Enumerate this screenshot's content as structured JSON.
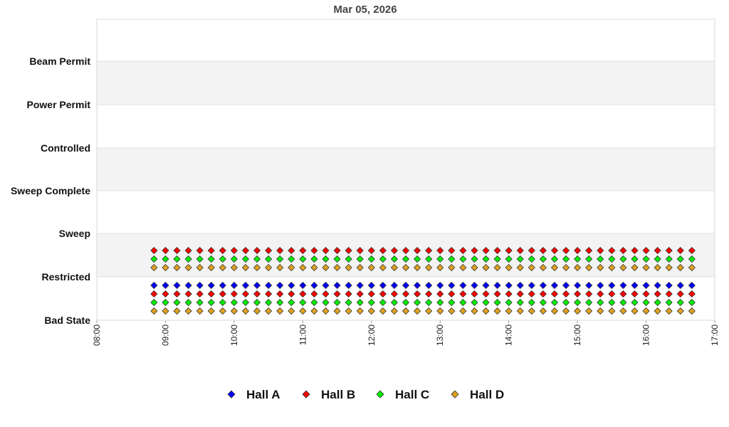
{
  "chart_data": {
    "type": "scatter",
    "title": "Mar 05, 2026",
    "xlabel": "",
    "ylabel": "",
    "x_ticks": [
      "08:00",
      "09:00",
      "10:00",
      "11:00",
      "12:00",
      "13:00",
      "14:00",
      "15:00",
      "16:00",
      "17:00"
    ],
    "xlim": [
      "08:00",
      "17:00"
    ],
    "y_categories": [
      "Bad State",
      "Restricted",
      "Sweep",
      "Sweep Complete",
      "Controlled",
      "Power Permit",
      "Beam Permit"
    ],
    "grid": "alternating horizontal bands",
    "legend_position": "bottom",
    "sample_start": "08:50",
    "sample_end": "16:40",
    "sample_interval_minutes": 10,
    "series": [
      {
        "name": "Hall A",
        "color": "#0000ff",
        "state": "Restricted"
      },
      {
        "name": "Hall B",
        "color": "#ff0000",
        "state": "Restricted"
      },
      {
        "name": "Hall C",
        "color": "#00ee00",
        "state": "Restricted"
      },
      {
        "name": "Hall D",
        "color": "#e0a020",
        "state": "Restricted"
      },
      {
        "name": "Hall B",
        "color": "#ff0000",
        "state": "Sweep"
      },
      {
        "name": "Hall C",
        "color": "#00ee00",
        "state": "Sweep"
      },
      {
        "name": "Hall D",
        "color": "#e0a020",
        "state": "Sweep"
      }
    ],
    "legend": [
      {
        "name": "Hall A",
        "color": "#0000ff"
      },
      {
        "name": "Hall B",
        "color": "#ff0000"
      },
      {
        "name": "Hall C",
        "color": "#00ee00"
      },
      {
        "name": "Hall D",
        "color": "#e0a020"
      }
    ]
  }
}
